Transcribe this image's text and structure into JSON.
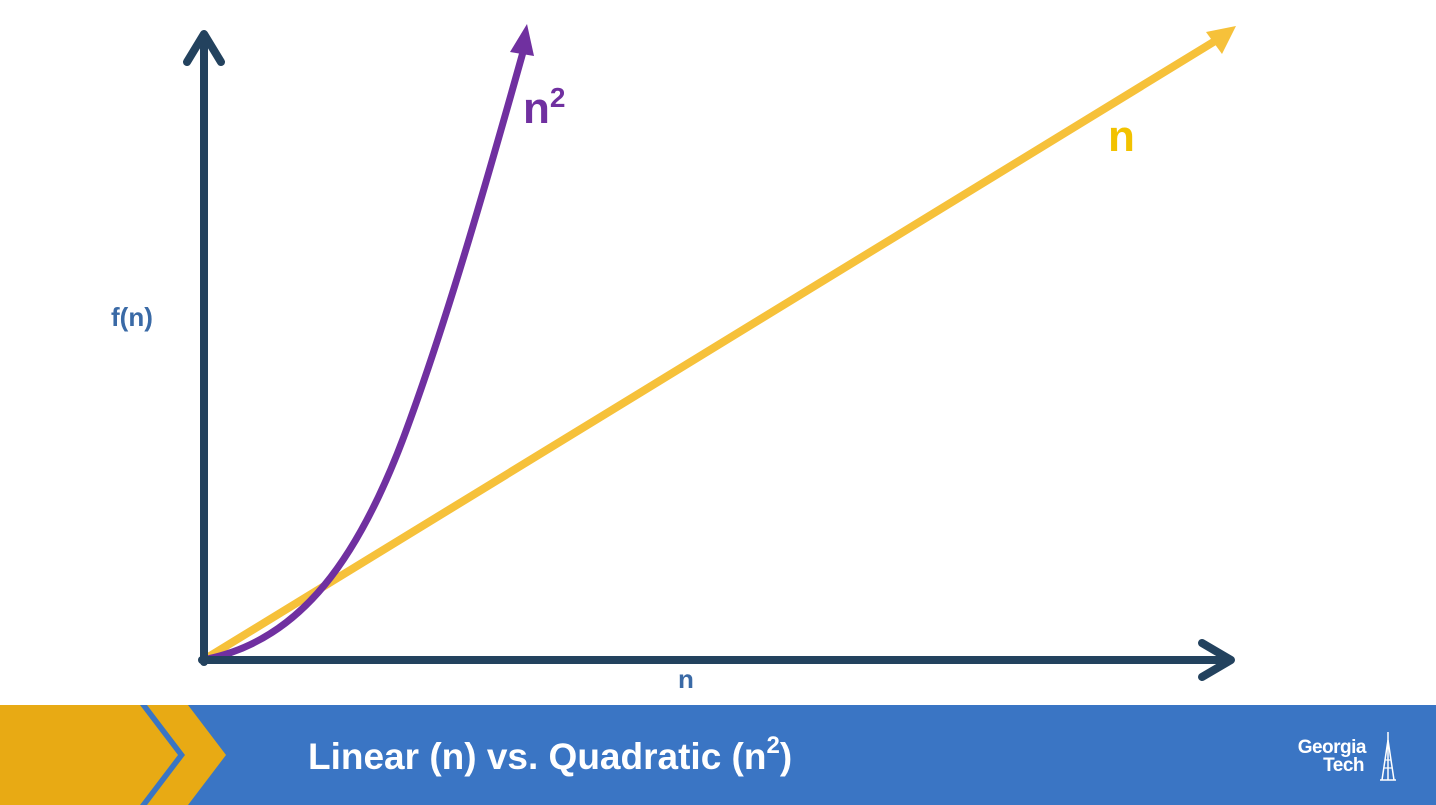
{
  "diagram": {
    "y_axis_label": "f(n)",
    "x_axis_label": "n",
    "quadratic_label_base": "n",
    "quadratic_label_exp": "2",
    "linear_label": "n",
    "colors": {
      "axis": "#23425e",
      "axis_label": "#3a6aa6",
      "quadratic": "#7030a0",
      "linear": "#f6c13a",
      "linear_label": "#f2c200"
    }
  },
  "footer": {
    "title_main": "Linear (n) vs. Quadratic (n",
    "title_exp": "2",
    "title_end": ")",
    "logo_line1": "Georgia",
    "logo_line2": "Tech",
    "colors": {
      "band": "#3a75c4",
      "chevron": "#e8aa14"
    }
  }
}
